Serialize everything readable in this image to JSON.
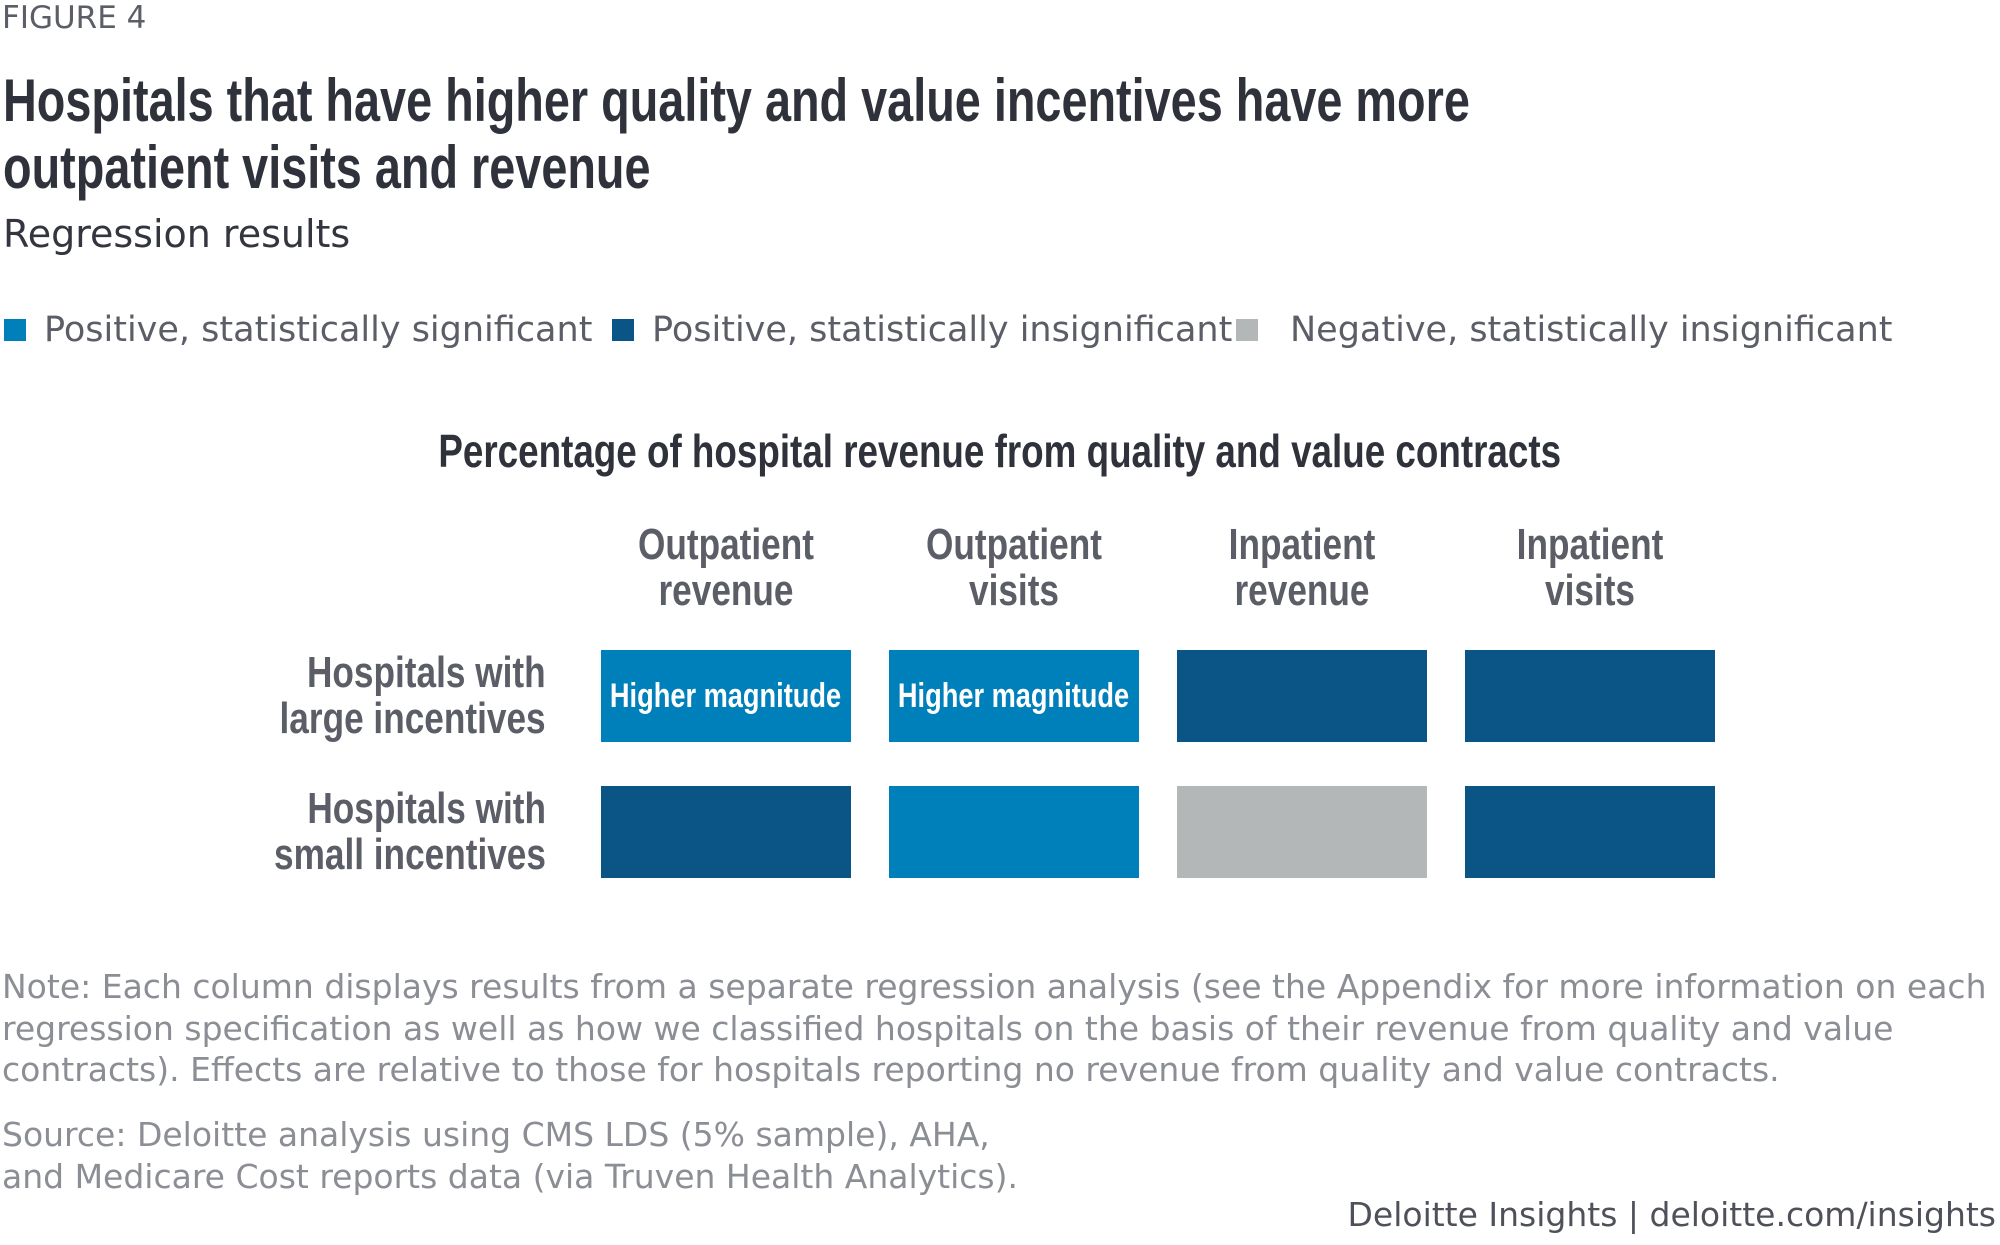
{
  "figure_label": "FIGURE 4",
  "title_lines": [
    "Hospitals that have higher quality and value incentives have more",
    "outpatient visits and revenue"
  ],
  "subtitle": "Regression results",
  "legend": [
    {
      "label": "Positive, statistically significant",
      "color": "#0080BA"
    },
    {
      "label": "Positive, statistically insignificant",
      "color": "#0B5586"
    },
    {
      "label": "Negative, statistically insignificant",
      "color": "#B4B7B8"
    }
  ],
  "chart_data": {
    "type": "table",
    "title": "Percentage of hospital revenue from quality and value contracts",
    "columns": [
      [
        "Outpatient",
        "revenue"
      ],
      [
        "Outpatient",
        "visits"
      ],
      [
        "Inpatient",
        "revenue"
      ],
      [
        "Inpatient",
        "visits"
      ]
    ],
    "rows": [
      {
        "label": [
          "Hospitals with",
          "large incentives"
        ],
        "cells": [
          {
            "category": 0,
            "text": "Higher magnitude"
          },
          {
            "category": 0,
            "text": "Higher magnitude"
          },
          {
            "category": 1,
            "text": ""
          },
          {
            "category": 1,
            "text": ""
          }
        ]
      },
      {
        "label": [
          "Hospitals with",
          "small incentives"
        ],
        "cells": [
          {
            "category": 1,
            "text": ""
          },
          {
            "category": 0,
            "text": ""
          },
          {
            "category": 2,
            "text": ""
          },
          {
            "category": 1,
            "text": ""
          }
        ]
      }
    ]
  },
  "note_lines": [
    "Note: Each column displays results from a separate regression analysis (see the Appendix for more information on each",
    "regression specification as well as how we classified hospitals on the basis of their revenue from quality and value",
    "contracts). Effects are relative to those for hospitals reporting no revenue from quality and value contracts."
  ],
  "source_lines": [
    "Source: Deloitte analysis using CMS LDS (5% sample), AHA,",
    "and Medicare Cost reports data (via Truven Health Analytics)."
  ],
  "footer": "Deloitte Insights | deloitte.com/insights"
}
